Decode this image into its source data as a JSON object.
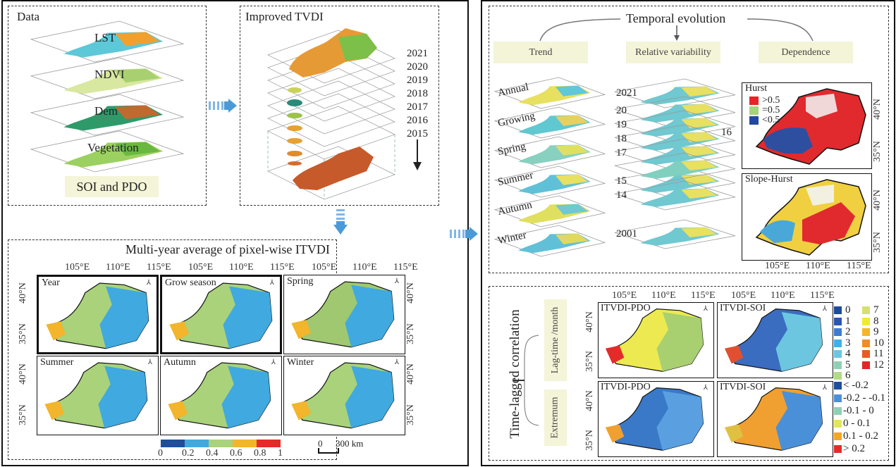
{
  "data_panel": {
    "title": "Data",
    "layers": [
      "LST",
      "NDVI",
      "Dem",
      "Vegetation"
    ],
    "box_label": "SOI and PDO"
  },
  "tvdi_panel": {
    "title": "Improved TVDI",
    "years": [
      "2021",
      "2020",
      "2019",
      "2018",
      "2017",
      "2016",
      "2015"
    ]
  },
  "average_panel": {
    "title": "Multi-year average of pixel-wise ITVDI",
    "maps": [
      "Year",
      "Grow season",
      "Spring",
      "Summer",
      "Autumn",
      "Winter"
    ],
    "lon_ticks": [
      "105°E",
      "110°E",
      "115°E"
    ],
    "lat_ticks": [
      "40°N",
      "35°N"
    ],
    "colorbar": {
      "ticks": [
        "0",
        "0.2",
        "0.4",
        "0.6",
        "0.8",
        "1"
      ],
      "colors": [
        "#1f4e9c",
        "#3fa9e0",
        "#a9d27a",
        "#f2b52b",
        "#e52a2a"
      ]
    },
    "scalebar": {
      "start": "0",
      "end": "300 km"
    }
  },
  "temporal_panel": {
    "title": "Temporal evolution",
    "categories": [
      "Trend",
      "Relative variability",
      "Dependence"
    ],
    "trend_layers": [
      "Annual",
      "Growing",
      "Spring",
      "Summer",
      "Autumn",
      "Winter"
    ],
    "variability_layers": [
      "2021",
      "20",
      "19",
      "18",
      "17",
      "15",
      "14",
      "2001"
    ],
    "variability_side_label": "16",
    "hurst_map": {
      "title": "Hurst",
      "legend": [
        {
          "label": ">0.5",
          "color": "#e8242a"
        },
        {
          "label": "=0.5",
          "color": "#a9d27a"
        },
        {
          "label": "<0.5",
          "color": "#2248a0"
        }
      ]
    },
    "slope_hurst_map": {
      "title": "Slope-Hurst"
    },
    "lon_ticks": [
      "105°E",
      "110°E",
      "115°E"
    ],
    "lat_ticks": [
      "40°N",
      "35°N"
    ]
  },
  "correlation_panel": {
    "title": "Time-lagged correlation",
    "branches": [
      "Lag-time /month",
      "Extremum"
    ],
    "maps": [
      "ITVDI-PDO",
      "ITVDI-SOI",
      "ITVDI-PDO",
      "ITVDI-SOI"
    ],
    "lon_ticks": [
      "105°E",
      "110°E",
      "115°E"
    ],
    "lat_ticks": [
      "40°N",
      "35°N"
    ],
    "lag_legend": [
      {
        "label": "0",
        "color": "#1e4a9a"
      },
      {
        "label": "1",
        "color": "#2b56ad"
      },
      {
        "label": "2",
        "color": "#3e7ccf"
      },
      {
        "label": "3",
        "color": "#3fb0ea"
      },
      {
        "label": "4",
        "color": "#6cc6e0"
      },
      {
        "label": "5",
        "color": "#8fd0b4"
      },
      {
        "label": "6",
        "color": "#b4d98a"
      },
      {
        "label": "7",
        "color": "#d6e070"
      },
      {
        "label": "8",
        "color": "#f1ea2c"
      },
      {
        "label": "9",
        "color": "#f5b52a"
      },
      {
        "label": "10",
        "color": "#f08c26"
      },
      {
        "label": "11",
        "color": "#ea5a22"
      },
      {
        "label": "12",
        "color": "#e32626"
      }
    ],
    "extremum_legend": [
      {
        "label": "< -0.2",
        "color": "#1f4e9c"
      },
      {
        "label": "-0.2 - -0.1",
        "color": "#4d90d8"
      },
      {
        "label": "-0.1 - 0",
        "color": "#8fd0b4"
      },
      {
        "label": "0 - 0.1",
        "color": "#e2e65a"
      },
      {
        "label": "0.1 - 0.2",
        "color": "#f5a623"
      },
      {
        "label": "> 0.2",
        "color": "#e52a2a"
      }
    ]
  }
}
